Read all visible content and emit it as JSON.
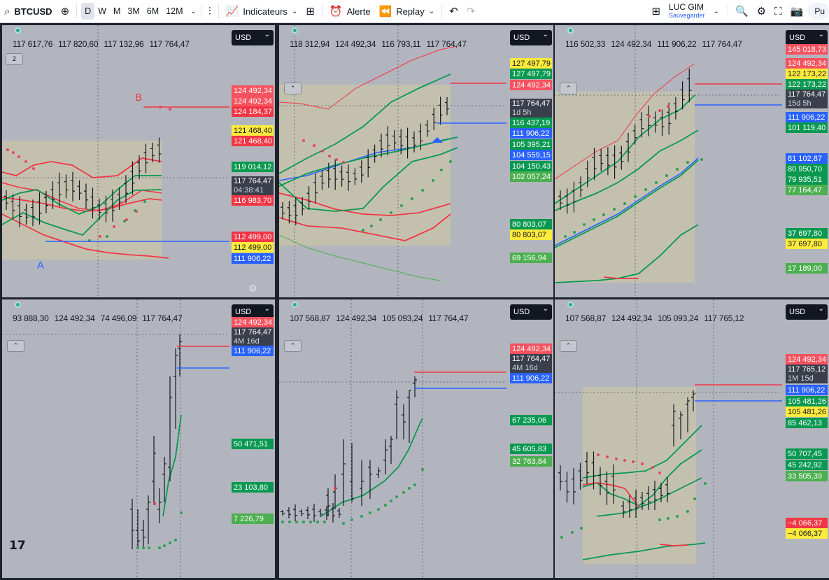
{
  "toolbar": {
    "symbol": "BTCUSD",
    "timeframes": [
      "D",
      "W",
      "M",
      "3M",
      "6M",
      "12M"
    ],
    "active_timeframe": "D",
    "indicators_label": "Indicateurs",
    "alert_label": "Alerte",
    "replay_label": "Replay",
    "layout_name": "LUC GIM",
    "save_label": "Sauvegarder",
    "publish_label": "Pu"
  },
  "colors": {
    "red": "#f23645",
    "green": "#089950",
    "blue": "#2962ff",
    "yellow": "#ffeb3b",
    "panel_bg": "#b2b5be"
  },
  "panels": [
    {
      "currency": "USD",
      "ohlc": [
        "117 617,76",
        "117 820,60",
        "117 132,96",
        "117 764,47"
      ],
      "collapse_label": "2",
      "annotations": [
        "B",
        "A"
      ],
      "price_labels": [
        [
          "124 492,34",
          "lred"
        ],
        [
          "124 492,34",
          "lred"
        ],
        [
          "124 184,37",
          "red"
        ],
        [
          "121 468,40",
          "yellow"
        ],
        [
          "121 468,40",
          "red"
        ],
        [
          "119 014,12",
          "green"
        ],
        [
          "117 764,47",
          "dark",
          "04:38:41"
        ],
        [
          "116 983,70",
          "red"
        ],
        [
          "112 499,00",
          "red"
        ],
        [
          "112 499,00",
          "yellow"
        ],
        [
          "111 906,22",
          "blue"
        ]
      ]
    },
    {
      "currency": "USD",
      "ohlc": [
        "118 312,94",
        "124 492,34",
        "116 793,11",
        "117 764,47"
      ],
      "price_labels": [
        [
          "127 497,79",
          "yellow"
        ],
        [
          "127 497,79",
          "green"
        ],
        [
          "124 492,34",
          "lred"
        ],
        [
          "117 764,47",
          "dark",
          "1d 5h"
        ],
        [
          "116 437,19",
          "green"
        ],
        [
          "111 906,22",
          "blue"
        ],
        [
          "105 395,21",
          "green"
        ],
        [
          "104 559,15",
          "blue"
        ],
        [
          "104 150,43",
          "green"
        ],
        [
          "102 057,24",
          "lgreen"
        ],
        [
          "80 803,07",
          "green"
        ],
        [
          "80 803,07",
          "yellow"
        ],
        [
          "69 156,94",
          "lgreen"
        ]
      ]
    },
    {
      "currency": "USD",
      "ohlc": [
        "116 502,33",
        "124 492,34",
        "111 906,22",
        "117 764,47"
      ],
      "price_labels": [
        [
          "145 018,73",
          "lred"
        ],
        [
          "124 492,34",
          "lred"
        ],
        [
          "122 173,22",
          "yellow"
        ],
        [
          "122 173,22",
          "green"
        ],
        [
          "117 764,47",
          "dark",
          "15d 5h"
        ],
        [
          "111 906,22",
          "blue"
        ],
        [
          "101 119,40",
          "green"
        ],
        [
          "81 102,87",
          "blue"
        ],
        [
          "80 950,70",
          "green"
        ],
        [
          "79 935,51",
          "green"
        ],
        [
          "77 164,47",
          "lgreen"
        ],
        [
          "37 697,80",
          "green"
        ],
        [
          "37 697,80",
          "yellow"
        ],
        [
          "17 189,00",
          "lgreen"
        ]
      ]
    },
    {
      "currency": "USD",
      "ohlc": [
        "93 888,30",
        "124 492,34",
        "74 496,09",
        "117 764,47"
      ],
      "price_labels": [
        [
          "124 492,34",
          "lred"
        ],
        [
          "117 764,47",
          "dark",
          "4M 16d"
        ],
        [
          "111 906,22",
          "blue"
        ],
        [
          "50 471,51",
          "green"
        ],
        [
          "23 103,80",
          "green"
        ],
        [
          "7 226,79",
          "lgreen"
        ]
      ]
    },
    {
      "currency": "USD",
      "ohlc": [
        "107 568,87",
        "124 492,34",
        "105 093,24",
        "117 764,47"
      ],
      "price_labels": [
        [
          "124 492,34",
          "lred"
        ],
        [
          "117 764,47",
          "dark",
          "4M 16d"
        ],
        [
          "111 906,22",
          "blue"
        ],
        [
          "67 235,06",
          "green"
        ],
        [
          "45 605,83",
          "green"
        ],
        [
          "32 763,84",
          "lgreen"
        ]
      ]
    },
    {
      "currency": "USD",
      "ohlc": [
        "107 568,87",
        "124 492,34",
        "105 093,24",
        "117 765,12"
      ],
      "price_labels": [
        [
          "124 492,34",
          "lred"
        ],
        [
          "117 765,12",
          "dark",
          "1M 15d"
        ],
        [
          "111 906,22",
          "blue"
        ],
        [
          "105 481,26",
          "green"
        ],
        [
          "105 481,26",
          "yellow"
        ],
        [
          "85 462,13",
          "green"
        ],
        [
          "50 707,45",
          "green"
        ],
        [
          "45 242,92",
          "green"
        ],
        [
          "33 505,39",
          "lgreen"
        ],
        [
          "−4 066,37",
          "red"
        ],
        [
          "−4 066,37",
          "yellow"
        ]
      ]
    }
  ]
}
